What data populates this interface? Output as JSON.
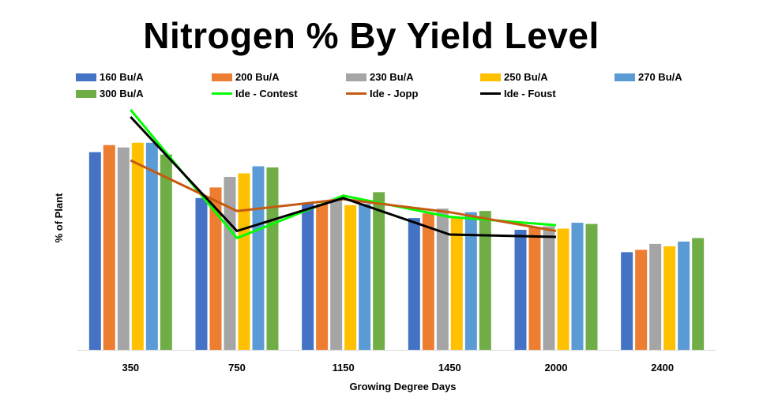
{
  "chart_data": {
    "type": "bar",
    "title": "Nitrogen % By Yield Level",
    "xlabel": "Growing Degree Days",
    "ylabel": "% of Plant",
    "categories": [
      "350",
      "750",
      "1150",
      "1450",
      "2000",
      "2400"
    ],
    "ylim": [
      0,
      1
    ],
    "grid": false,
    "legend_position": "top",
    "series": [
      {
        "name": "160 Bu/A",
        "kind": "bar",
        "color": "#4472C4",
        "values": [
          0.84,
          0.645,
          0.625,
          0.56,
          0.51,
          0.415
        ]
      },
      {
        "name": "200 Bu/A",
        "kind": "bar",
        "color": "#ED7D31",
        "values": [
          0.87,
          0.69,
          0.62,
          0.58,
          0.52,
          0.425
        ]
      },
      {
        "name": "230 Bu/A",
        "kind": "bar",
        "color": "#A5A5A5",
        "values": [
          0.86,
          0.735,
          0.64,
          0.6,
          0.525,
          0.45
        ]
      },
      {
        "name": "250 Bu/A",
        "kind": "bar",
        "color": "#FFC000",
        "values": [
          0.88,
          0.75,
          0.615,
          0.565,
          0.515,
          0.44
        ]
      },
      {
        "name": "270 Bu/A",
        "kind": "bar",
        "color": "#5B9BD5",
        "values": [
          0.88,
          0.78,
          0.62,
          0.585,
          0.54,
          0.46
        ]
      },
      {
        "name": "300 Bu/A",
        "kind": "bar",
        "color": "#70AD47",
        "values": [
          0.83,
          0.775,
          0.67,
          0.59,
          0.535,
          0.475
        ]
      },
      {
        "name": "Ide - Contest",
        "kind": "line",
        "color": "#00FF00",
        "values": [
          1.02,
          0.475,
          0.655,
          0.565,
          0.53,
          null
        ]
      },
      {
        "name": "Ide - Jopp",
        "kind": "line",
        "color": "#C55A11",
        "values": [
          0.805,
          0.59,
          0.64,
          0.585,
          0.505,
          null
        ]
      },
      {
        "name": "Ide - Foust",
        "kind": "line",
        "color": "#000000",
        "values": [
          0.99,
          0.505,
          0.645,
          0.49,
          0.48,
          null
        ]
      }
    ]
  }
}
